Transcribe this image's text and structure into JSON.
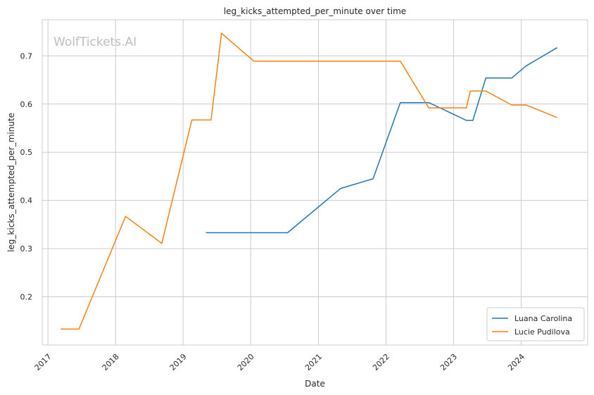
{
  "chart_data": {
    "type": "line",
    "title": "leg_kicks_attempted_per_minute over time",
    "xlabel": "Date",
    "ylabel": "leg_kicks_attempted_per_minute",
    "watermark": "WolfTickets.AI",
    "x_ticks": [
      "2017",
      "2018",
      "2019",
      "2020",
      "2021",
      "2022",
      "2023",
      "2024"
    ],
    "y_ticks": [
      "0.2",
      "0.3",
      "0.4",
      "0.5",
      "0.6",
      "0.7"
    ],
    "xlim": [
      "2016-12-01",
      "2024-12-25"
    ],
    "ylim": [
      0.1,
      0.775
    ],
    "grid": true,
    "legend_position": "lower-right",
    "series": [
      {
        "name": "Luana Carolina",
        "color": "#1f77b4",
        "points": [
          [
            "2019-05-04",
            0.333
          ],
          [
            "2020-07-18",
            0.333
          ],
          [
            "2021-05-01",
            0.425
          ],
          [
            "2021-10-23",
            0.445
          ],
          [
            "2022-03-19",
            0.603
          ],
          [
            "2022-08-20",
            0.603
          ],
          [
            "2023-03-11",
            0.566
          ],
          [
            "2023-04-15",
            0.566
          ],
          [
            "2023-06-24",
            0.654
          ],
          [
            "2023-11-11",
            0.654
          ],
          [
            "2024-01-27",
            0.679
          ],
          [
            "2024-07-13",
            0.717
          ]
        ]
      },
      {
        "name": "Lucie Pudilova",
        "color": "#ff7f0e",
        "points": [
          [
            "2017-03-11",
            0.133
          ],
          [
            "2017-06-17",
            0.133
          ],
          [
            "2018-02-24",
            0.367
          ],
          [
            "2018-09-08",
            0.311
          ],
          [
            "2019-02-17",
            0.567
          ],
          [
            "2019-06-01",
            0.567
          ],
          [
            "2019-07-27",
            0.747
          ],
          [
            "2020-01-18",
            0.689
          ],
          [
            "2022-03-19",
            0.689
          ],
          [
            "2022-08-20",
            0.592
          ],
          [
            "2023-03-11",
            0.592
          ],
          [
            "2023-04-01",
            0.627
          ],
          [
            "2023-06-24",
            0.627
          ],
          [
            "2023-11-11",
            0.598
          ],
          [
            "2024-01-27",
            0.598
          ],
          [
            "2024-07-13",
            0.572
          ]
        ]
      }
    ]
  }
}
